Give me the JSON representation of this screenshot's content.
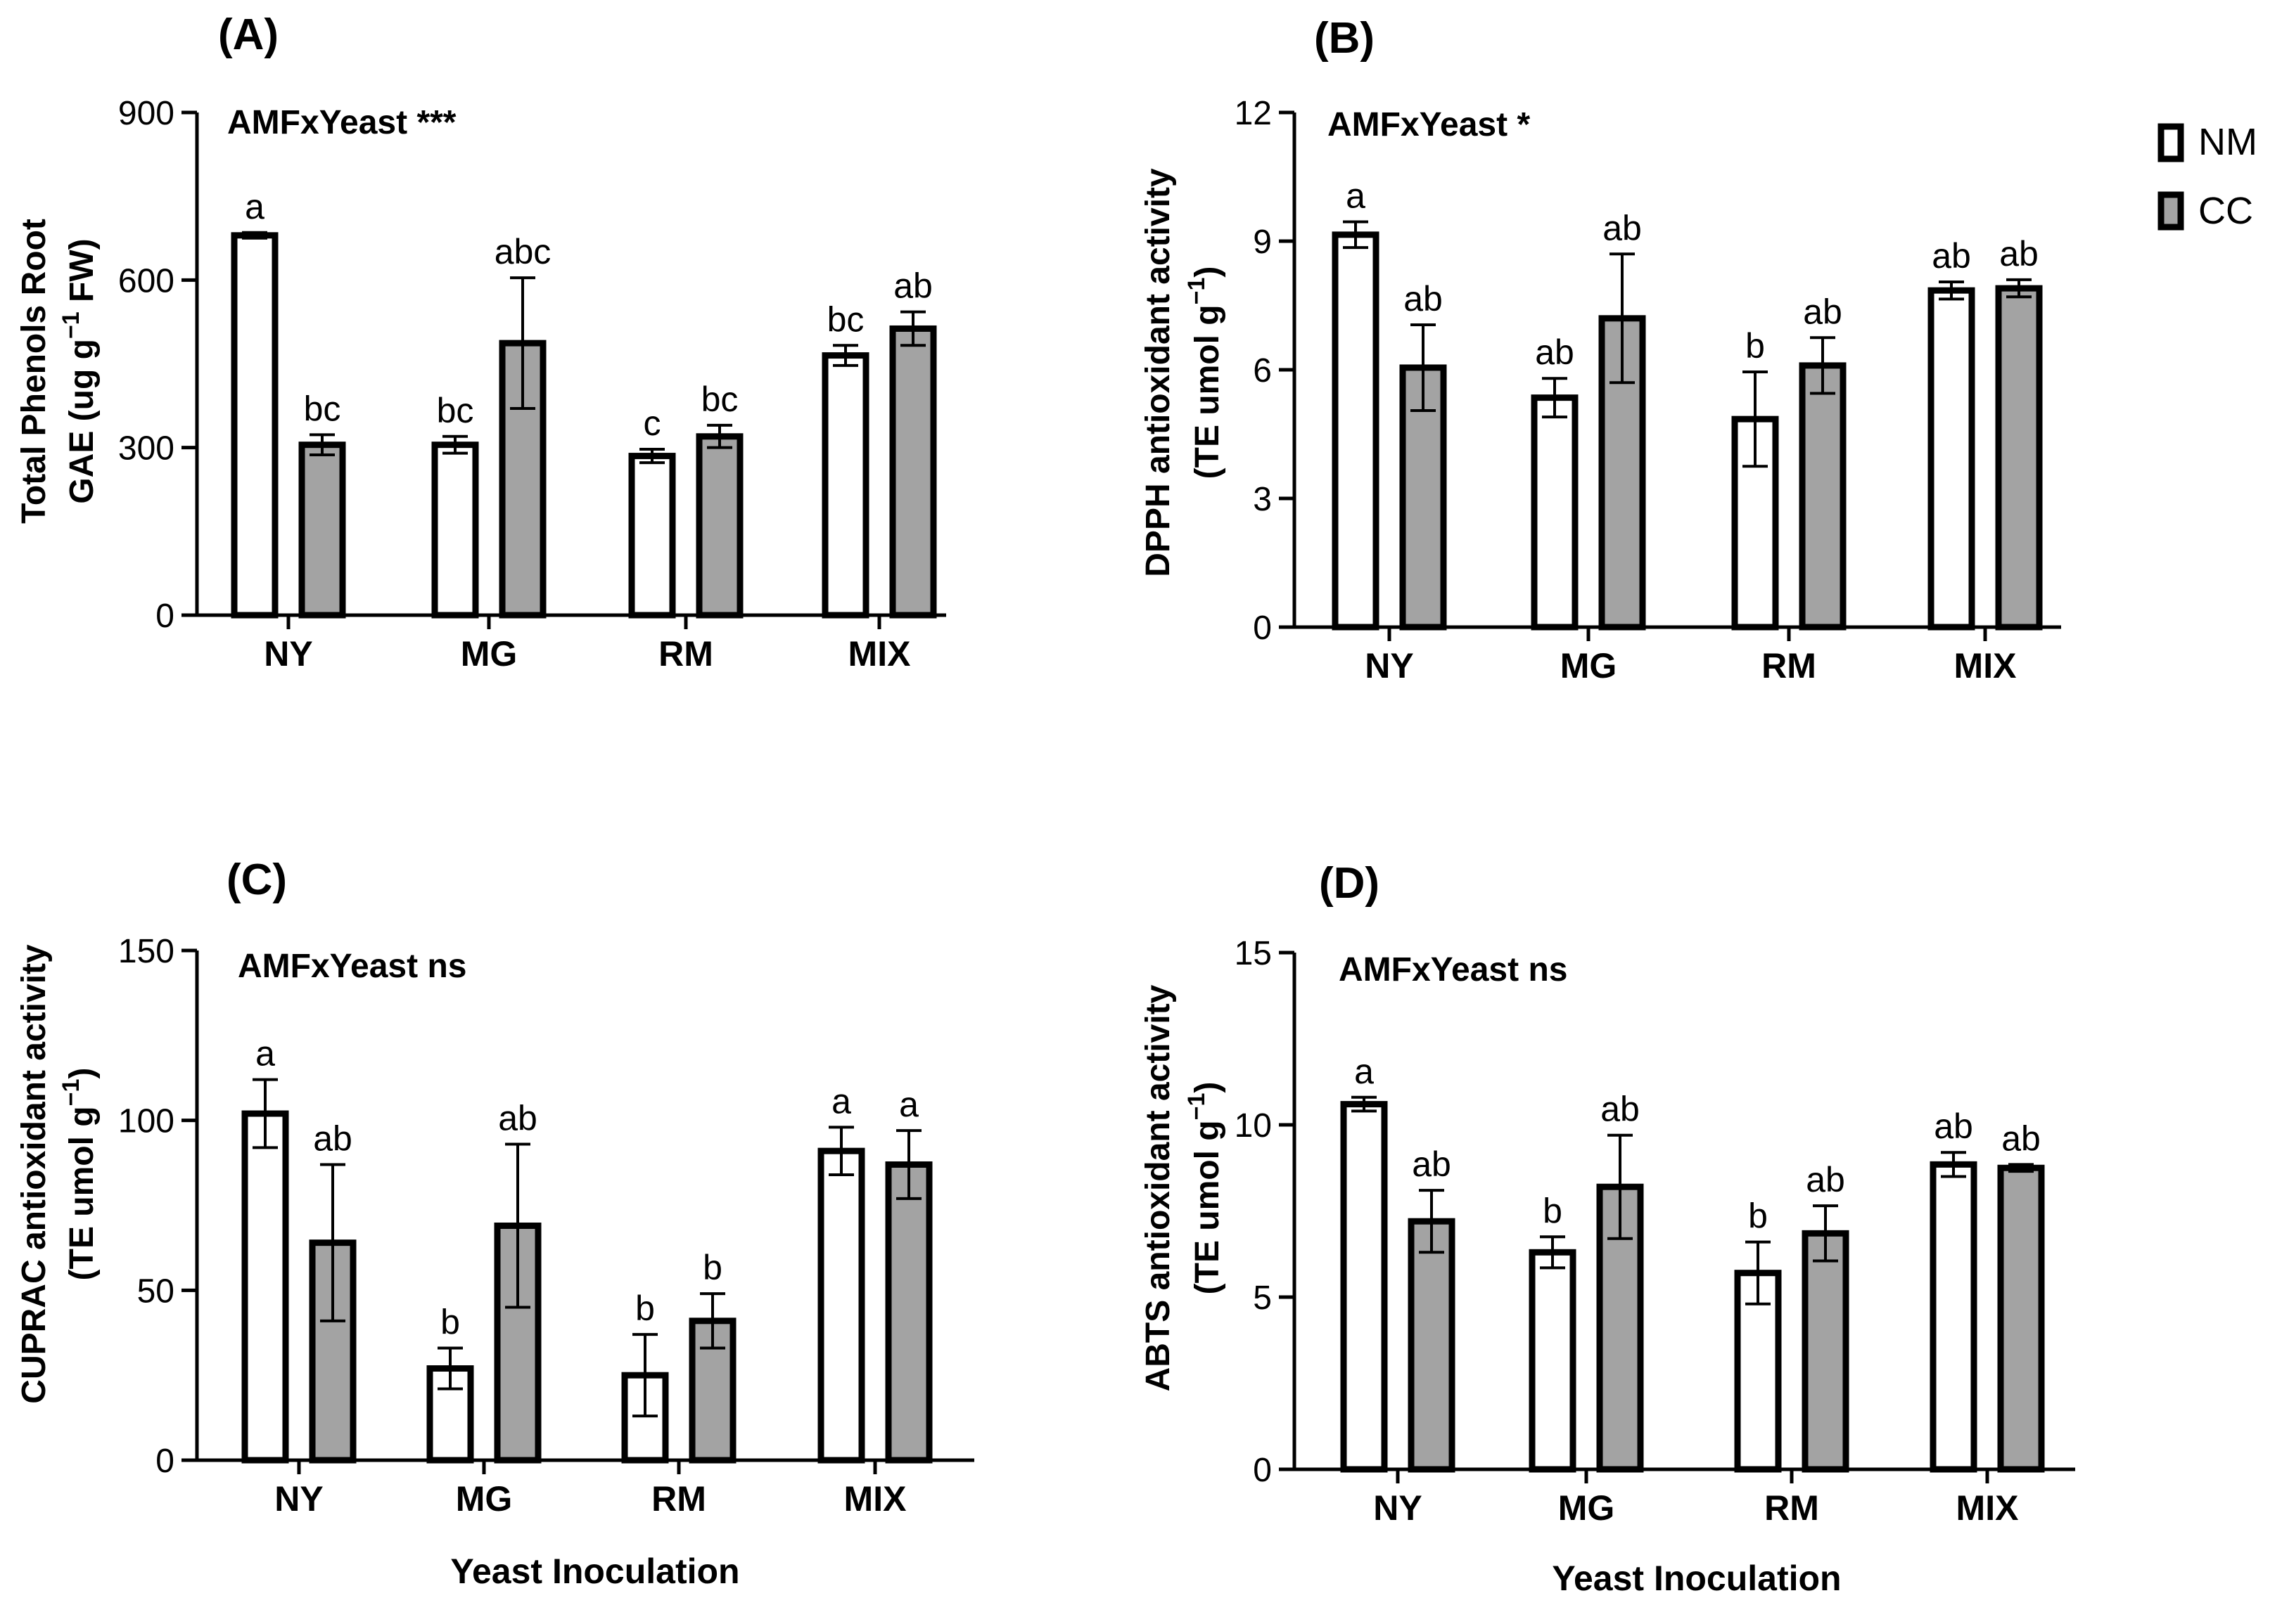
{
  "colors": {
    "nm_fill": "#ffffff",
    "cc_fill": "#a3a3a3",
    "stroke": "#000000"
  },
  "legend": {
    "items": [
      {
        "label": "NM",
        "color": "#ffffff"
      },
      {
        "label": "CC",
        "color": "#a3a3a3"
      }
    ]
  },
  "chart_data": [
    {
      "type": "bar",
      "panel_label": "(A)",
      "annotation": "AMFxYeast ***",
      "ylabel_line1": "Total Phenols Root",
      "ylabel_line2_prefix": "GAE (ug g",
      "ylabel_line2_sup": "−1",
      "ylabel_line2_suffix": " FW)",
      "xlabel": "",
      "ylim": [
        0,
        900
      ],
      "yticks": [
        0,
        300,
        600,
        900
      ],
      "ytick_labels": [
        "0",
        "300",
        "600",
        "900"
      ],
      "categories": [
        "NY",
        "MG",
        "RM",
        "MIX"
      ],
      "series": [
        {
          "name": "NM",
          "values": [
            680,
            305,
            285,
            465
          ],
          "errors": [
            5,
            15,
            12,
            18
          ],
          "letters": [
            "a",
            "bc",
            "c",
            "bc"
          ]
        },
        {
          "name": "CC",
          "values": [
            305,
            487,
            320,
            513
          ],
          "errors": [
            18,
            117,
            20,
            30
          ],
          "letters": [
            "bc",
            "abc",
            "bc",
            "ab"
          ]
        }
      ]
    },
    {
      "type": "bar",
      "panel_label": "(B)",
      "annotation": "AMFxYeast *",
      "ylabel_line1": "DPPH antioxidant activity",
      "ylabel_line2_prefix": "(TE umol g",
      "ylabel_line2_sup": "−1",
      "ylabel_line2_suffix": ")",
      "xlabel": "",
      "ylim": [
        0,
        12
      ],
      "yticks": [
        0,
        3,
        6,
        9,
        12
      ],
      "ytick_labels": [
        "0",
        "3",
        "6",
        "9",
        "12"
      ],
      "categories": [
        "NY",
        "MG",
        "RM",
        "MIX"
      ],
      "series": [
        {
          "name": "NM",
          "values": [
            9.15,
            5.35,
            4.85,
            7.85
          ],
          "errors": [
            0.3,
            0.45,
            1.1,
            0.2
          ],
          "letters": [
            "a",
            "ab",
            "b",
            "ab"
          ]
        },
        {
          "name": "CC",
          "values": [
            6.05,
            7.2,
            6.1,
            7.9
          ],
          "errors": [
            1.0,
            1.5,
            0.65,
            0.2
          ],
          "letters": [
            "ab",
            "ab",
            "ab",
            "ab"
          ]
        }
      ]
    },
    {
      "type": "bar",
      "panel_label": "(C)",
      "annotation": "AMFxYeast ns",
      "ylabel_line1": "CUPRAC antioxidant activity",
      "ylabel_line2_prefix": "(TE umol g",
      "ylabel_line2_sup": "−1",
      "ylabel_line2_suffix": ")",
      "xlabel": "Yeast Inoculation",
      "ylim": [
        0,
        150
      ],
      "yticks": [
        0,
        50,
        100,
        150
      ],
      "ytick_labels": [
        "0",
        "50",
        "100",
        "150"
      ],
      "categories": [
        "NY",
        "MG",
        "RM",
        "MIX"
      ],
      "series": [
        {
          "name": "NM",
          "values": [
            102,
            27,
            25,
            91
          ],
          "errors": [
            10,
            6,
            12,
            7
          ],
          "letters": [
            "a",
            "b",
            "b",
            "a"
          ]
        },
        {
          "name": "CC",
          "values": [
            64,
            69,
            41,
            87
          ],
          "errors": [
            23,
            24,
            8,
            10
          ],
          "letters": [
            "ab",
            "ab",
            "b",
            "a"
          ]
        }
      ]
    },
    {
      "type": "bar",
      "panel_label": "(D)",
      "annotation": "AMFxYeast ns",
      "ylabel_line1": "ABTS antioxidant activity",
      "ylabel_line2_prefix": "(TE umol g",
      "ylabel_line2_sup": "−1",
      "ylabel_line2_suffix": ")",
      "xlabel": "Yeast Inoculation",
      "ylim": [
        0,
        15
      ],
      "yticks": [
        0,
        5,
        10,
        15
      ],
      "ytick_labels": [
        "0",
        "5",
        "10",
        "15"
      ],
      "categories": [
        "NY",
        "MG",
        "RM",
        "MIX"
      ],
      "series": [
        {
          "name": "NM",
          "values": [
            10.6,
            6.3,
            5.7,
            8.85
          ],
          "errors": [
            0.2,
            0.45,
            0.9,
            0.35
          ],
          "letters": [
            "a",
            "b",
            "b",
            "ab"
          ]
        },
        {
          "name": "CC",
          "values": [
            7.2,
            8.2,
            6.85,
            8.75
          ],
          "errors": [
            0.9,
            1.5,
            0.8,
            0.1
          ],
          "letters": [
            "ab",
            "ab",
            "ab",
            "ab"
          ]
        }
      ]
    }
  ]
}
